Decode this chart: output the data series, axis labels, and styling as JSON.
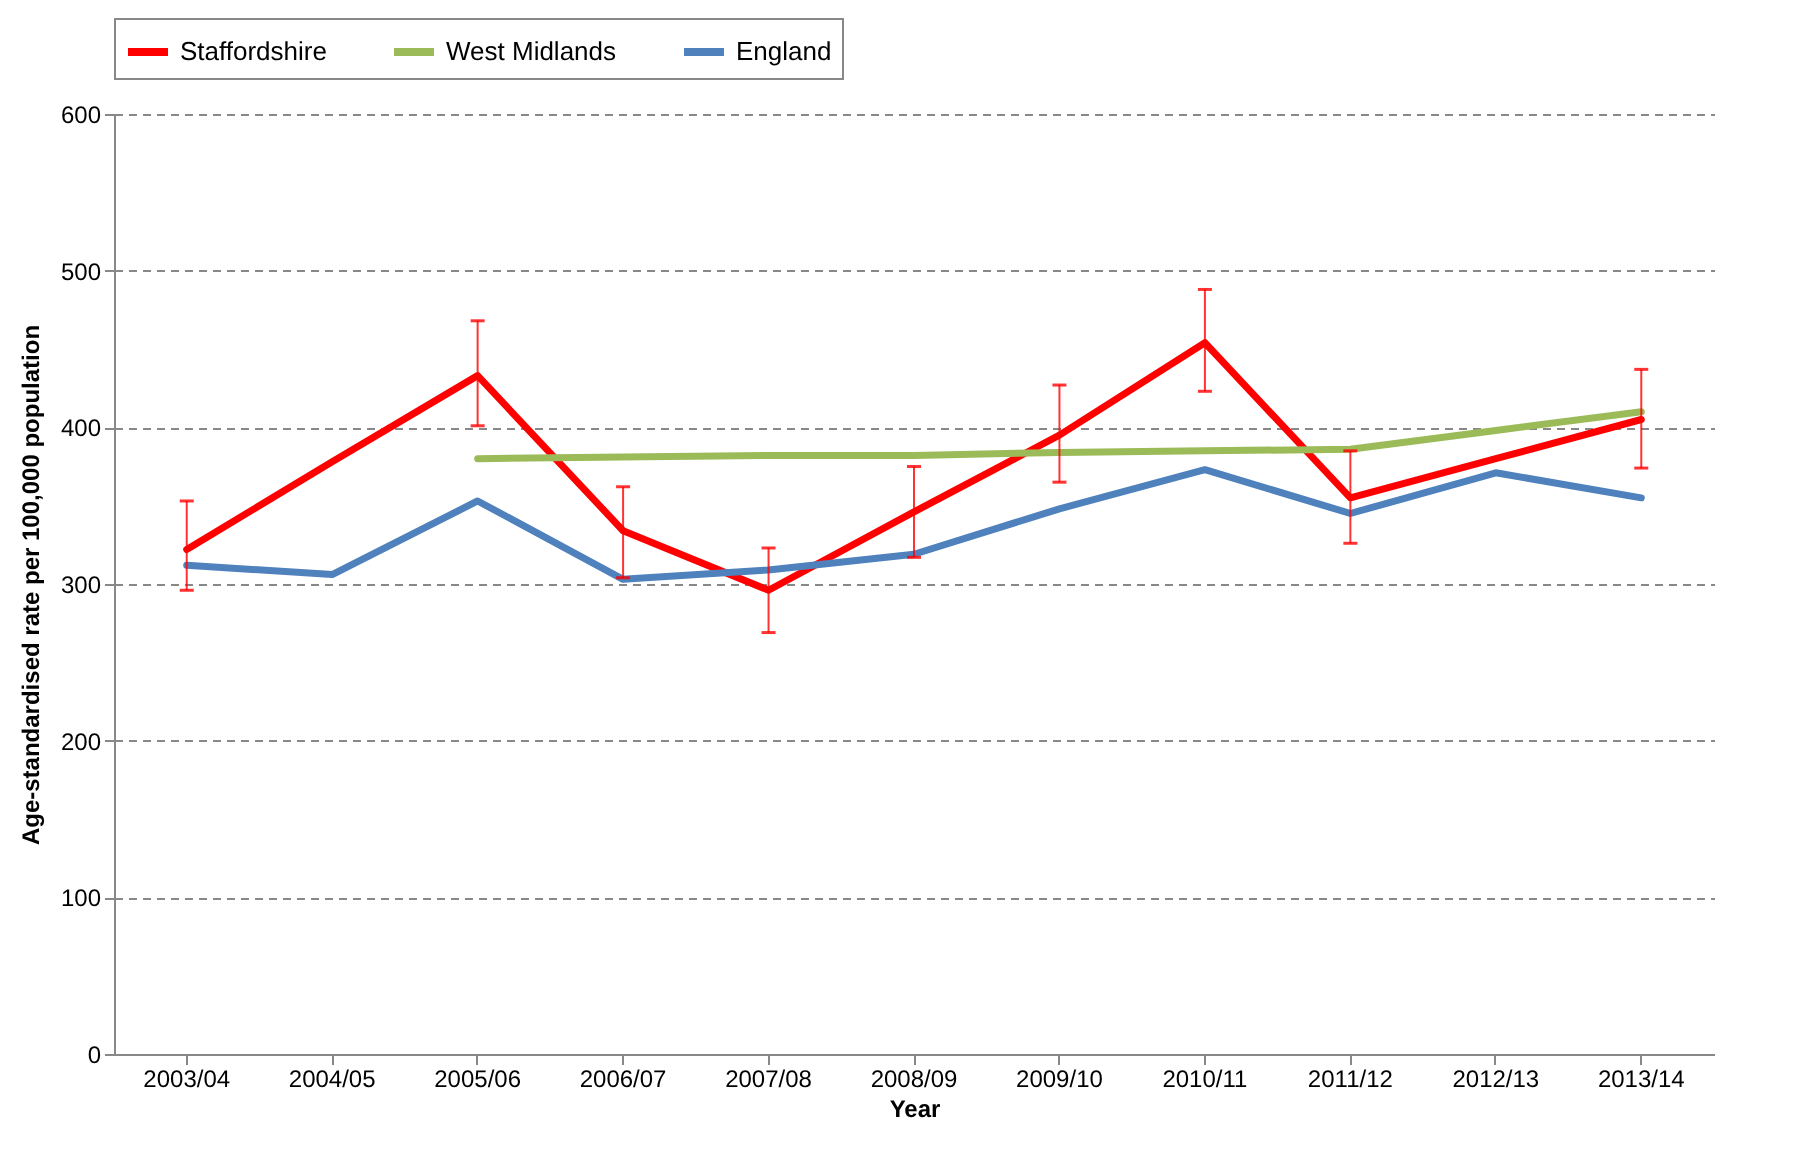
{
  "chart_data": {
    "type": "line",
    "xlabel": "Year",
    "ylabel": "Age-standardised rate per 100,000 population",
    "categories": [
      "2003/04",
      "2004/05",
      "2005/06",
      "2006/07",
      "2007/08",
      "2008/09",
      "2009/10",
      "2010/11",
      "2011/12",
      "2012/13",
      "2013/14"
    ],
    "series": [
      {
        "name": "Staffordshire",
        "color": "#ff0000",
        "values": [
          322,
          378,
          433,
          334,
          296,
          346,
          395,
          454,
          355,
          380,
          405
        ],
        "errors": [
          [
            296,
            353
          ],
          null,
          [
            401,
            468
          ],
          [
            304,
            362
          ],
          [
            269,
            323
          ],
          [
            317,
            375
          ],
          [
            365,
            427
          ],
          [
            423,
            488
          ],
          [
            326,
            385
          ],
          null,
          [
            374,
            437
          ]
        ]
      },
      {
        "name": "West Midlands",
        "color": "#9bbb59",
        "values": [
          null,
          null,
          380,
          381,
          382,
          382,
          384,
          385,
          386,
          398,
          410
        ]
      },
      {
        "name": "England",
        "color": "#4f81bd",
        "values": [
          312,
          306,
          353,
          303,
          309,
          319,
          348,
          373,
          345,
          371,
          355
        ]
      }
    ],
    "ylim": [
      0,
      600
    ],
    "yticks": [
      0,
      100,
      200,
      300,
      400,
      500,
      600
    ],
    "grid": "y",
    "legend": "top",
    "marker": "none",
    "line_style": "solid"
  }
}
